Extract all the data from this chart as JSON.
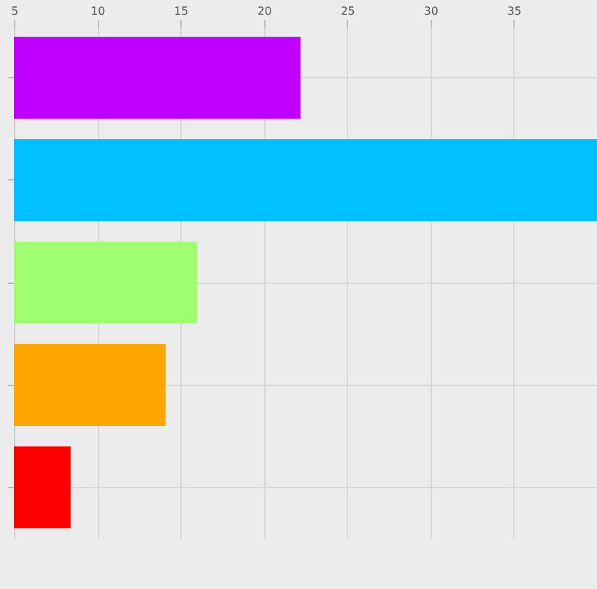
{
  "chart_data": {
    "type": "bar",
    "orientation": "horizontal",
    "categories": [
      null,
      null,
      null,
      null,
      null
    ],
    "values": [
      22.2,
      40,
      16,
      14.1,
      8.4
    ],
    "colors": [
      "#c000ff",
      "#00c0ff",
      "#a0ff70",
      "#ffa500",
      "#ff0000"
    ],
    "xlim": [
      5,
      40
    ],
    "xticks": [
      5,
      10,
      15,
      20,
      25,
      30,
      35
    ],
    "grid": true,
    "tick_labels": "x"
  }
}
